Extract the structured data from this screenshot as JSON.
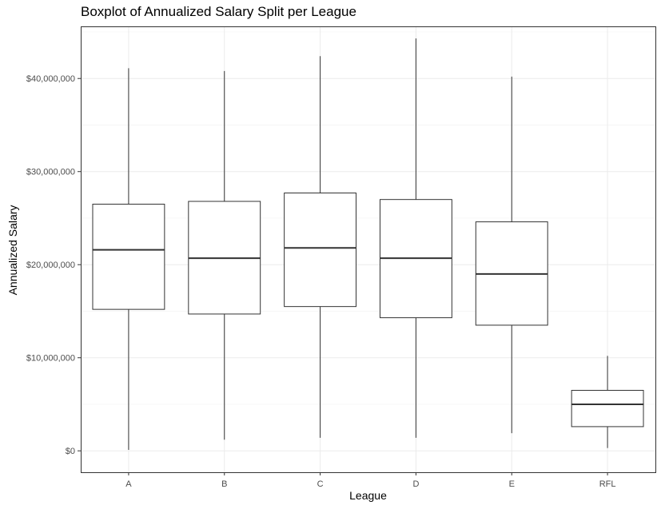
{
  "chart_data": {
    "type": "boxplot",
    "title": "Boxplot of Annualized Salary Split per League",
    "xlabel": "League",
    "ylabel": "Annualized Salary",
    "ylim": [
      -2300000,
      45600000
    ],
    "yticks": [
      0,
      10000000,
      20000000,
      30000000,
      40000000
    ],
    "ytick_labels": [
      "$0",
      "$10,000,000",
      "$20,000,000",
      "$30,000,000",
      "$40,000,000"
    ],
    "grid": true,
    "categories": [
      "A",
      "B",
      "C",
      "D",
      "E",
      "RFL"
    ],
    "boxes": [
      {
        "category": "A",
        "min": 100000,
        "q1": 15200000,
        "median": 21600000,
        "q3": 26500000,
        "max": 41100000
      },
      {
        "category": "B",
        "min": 1200000,
        "q1": 14700000,
        "median": 20700000,
        "q3": 26800000,
        "max": 40800000
      },
      {
        "category": "C",
        "min": 1400000,
        "q1": 15500000,
        "median": 21800000,
        "q3": 27700000,
        "max": 42400000
      },
      {
        "category": "D",
        "min": 1400000,
        "q1": 14300000,
        "median": 20700000,
        "q3": 27000000,
        "max": 44300000
      },
      {
        "category": "E",
        "min": 1900000,
        "q1": 13500000,
        "median": 19000000,
        "q3": 24600000,
        "max": 40200000
      },
      {
        "category": "RFL",
        "min": 300000,
        "q1": 2600000,
        "median": 5000000,
        "q3": 6500000,
        "max": 10200000
      }
    ]
  }
}
